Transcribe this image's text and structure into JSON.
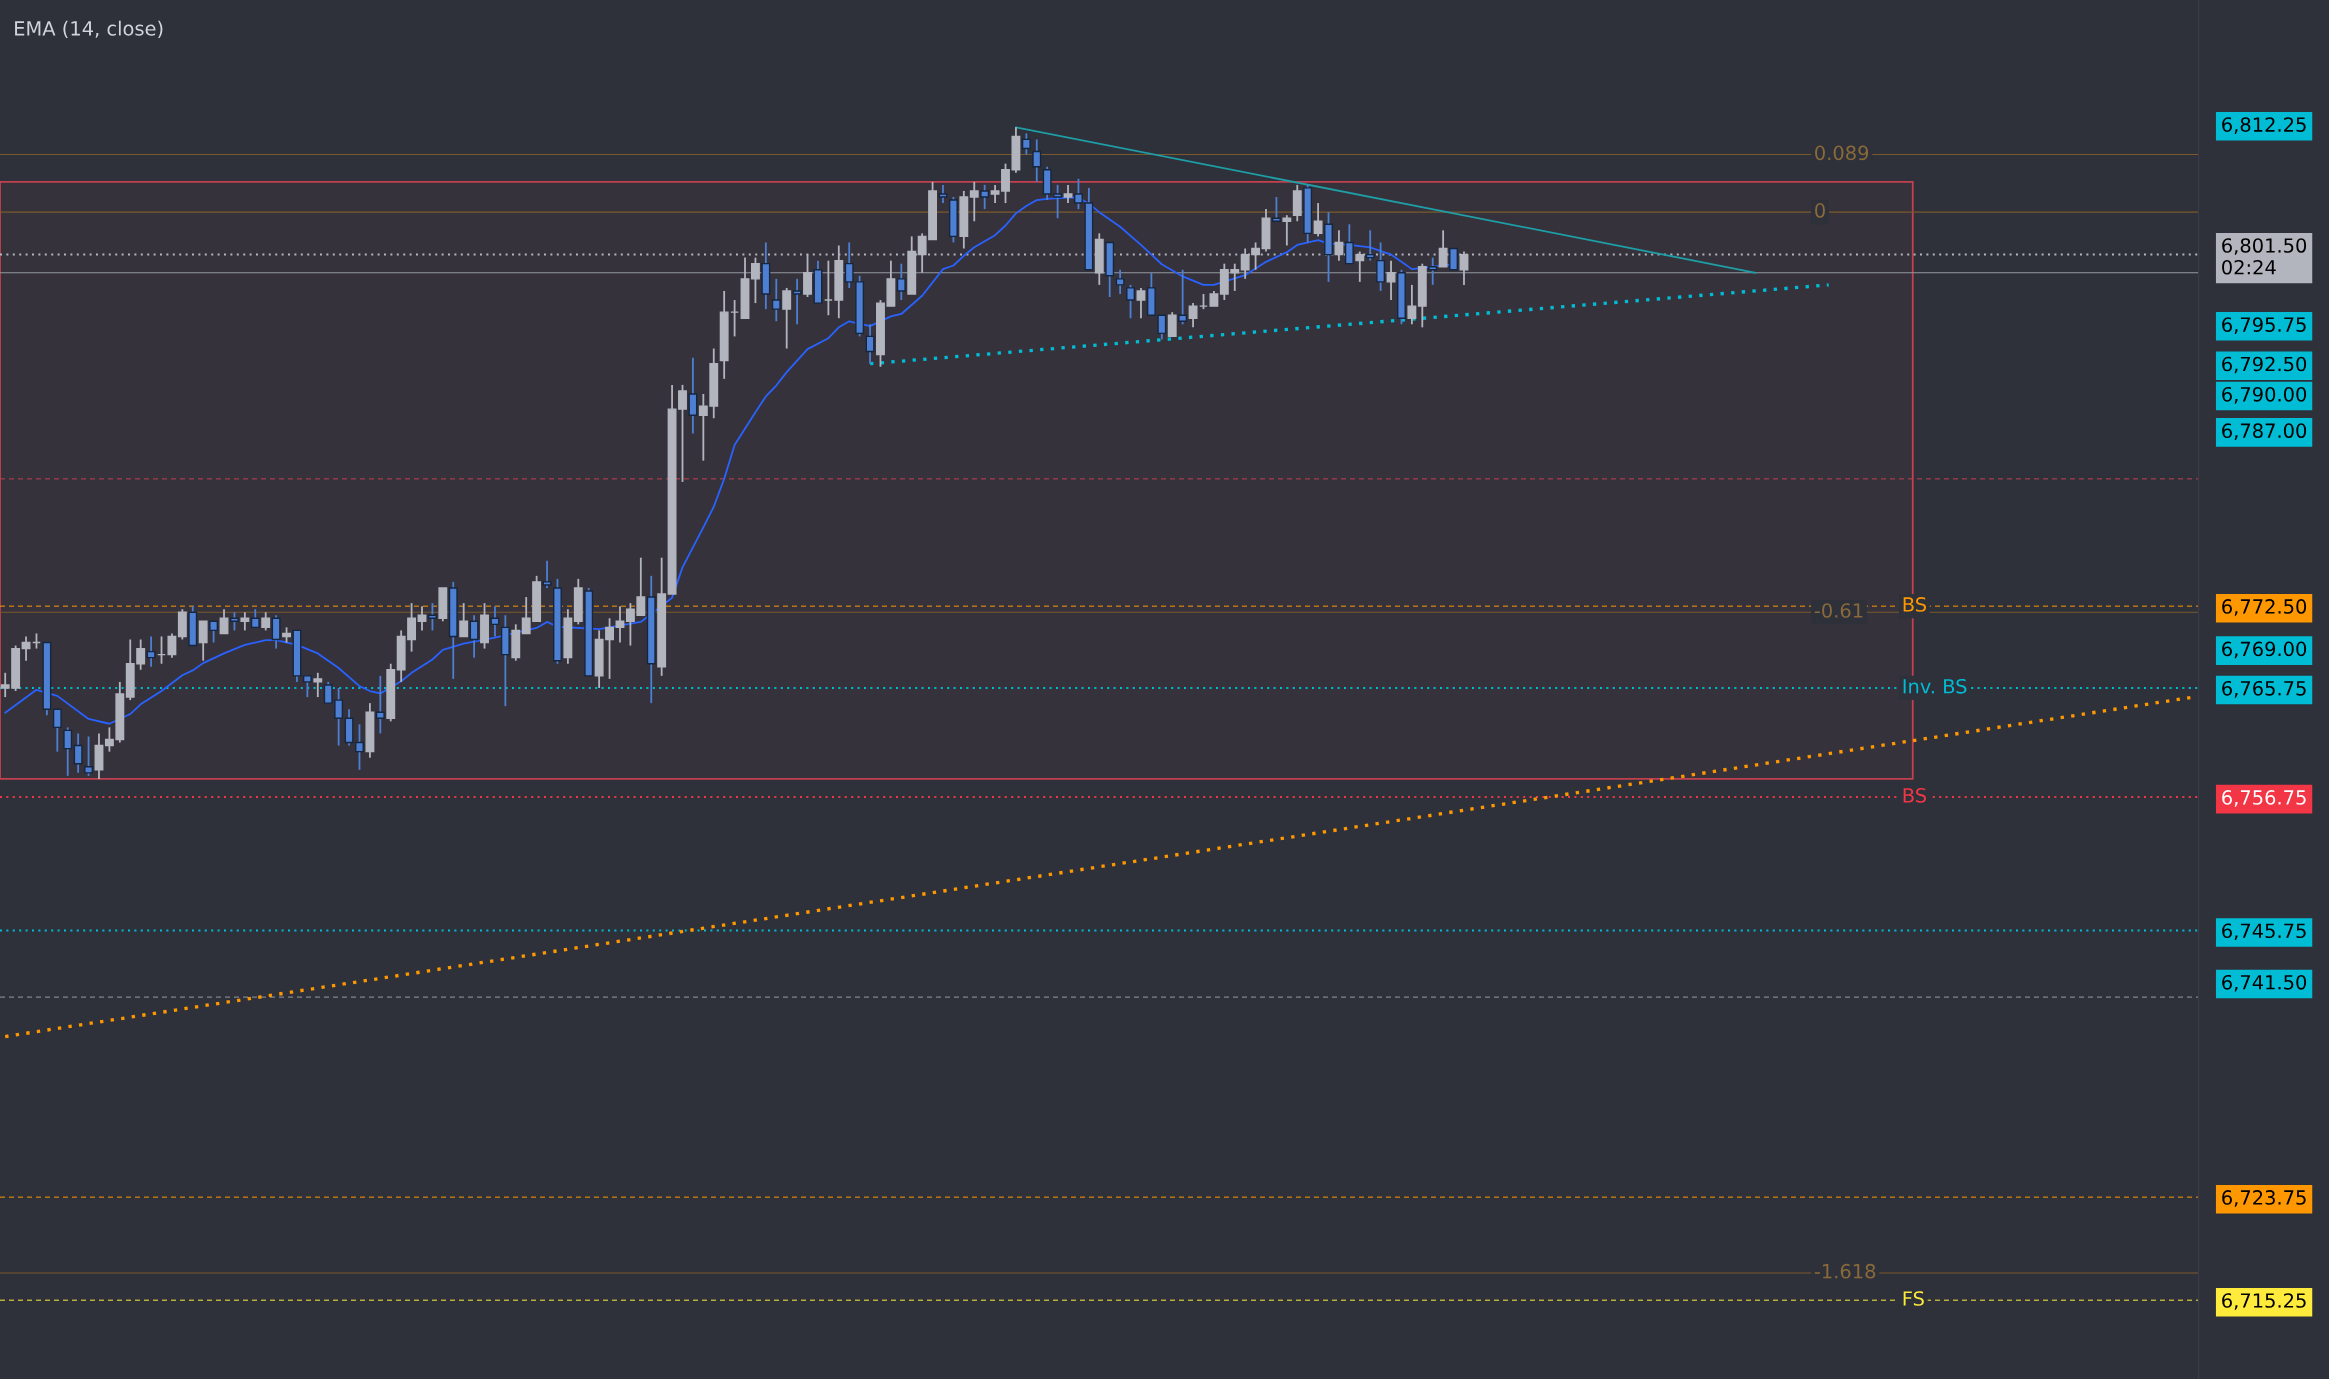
{
  "chart_data": {
    "type": "candlestick",
    "annotations": [
      "EMA (14, close)",
      {
        "text": "0.089",
        "y": 6809.75
      },
      {
        "text": "0",
        "y": 6805
      },
      {
        "text": "-0.61",
        "y": 6772
      },
      {
        "text": "-1.618",
        "y": 6717.5
      }
    ],
    "categories": [
      null,
      null,
      null,
      null,
      null,
      null,
      null,
      null,
      null,
      null,
      null,
      null,
      null,
      null,
      null,
      null,
      null,
      null,
      null,
      null,
      null,
      null,
      null,
      null,
      null,
      null,
      null,
      null,
      null,
      null,
      null,
      null,
      null,
      null,
      null,
      null,
      null,
      null,
      null,
      null,
      null,
      null,
      null,
      null,
      null,
      null,
      null,
      null,
      null,
      null,
      null,
      null,
      null,
      null,
      null,
      null,
      null,
      null,
      null,
      null,
      null,
      null,
      null,
      null,
      null,
      null,
      null,
      null,
      null,
      null,
      null,
      null,
      null,
      null,
      null,
      null,
      null,
      null,
      null,
      null,
      null,
      null,
      null,
      null,
      null,
      null,
      null,
      null,
      null,
      null,
      null,
      null,
      null,
      null,
      null,
      null,
      null,
      null,
      null,
      null,
      null,
      null,
      null,
      null,
      null,
      null,
      null,
      null,
      null,
      null,
      null,
      null,
      null,
      null,
      null,
      null,
      null,
      null,
      null,
      null,
      null,
      null,
      null,
      null,
      null,
      null,
      null,
      null,
      null,
      null,
      null,
      null,
      null,
      null,
      null,
      null,
      null,
      null,
      null,
      null,
      null,
      null,
      null,
      null,
      null,
      null,
      null,
      null,
      null,
      null,
      null,
      null,
      null,
      null,
      null,
      null,
      null,
      null,
      null,
      null,
      null,
      null,
      null,
      null,
      null,
      null,
      null,
      null,
      null,
      null,
      null,
      null,
      null,
      null,
      null,
      null,
      null,
      null,
      null,
      null,
      null,
      null,
      null,
      null,
      null,
      null,
      null,
      null,
      null,
      null,
      null,
      null,
      null,
      null,
      null,
      null,
      null,
      null,
      null,
      null,
      null,
      null,
      null,
      null,
      null,
      null,
      null,
      null,
      null,
      null,
      null
    ],
    "ohlc": [
      [
        6765.75,
        6767,
        6765,
        6766
      ],
      [
        6765.75,
        6769.25,
        6765.5,
        6769
      ],
      [
        6769,
        6770,
        6768,
        6769.5
      ],
      [
        6769.5,
        6770.25,
        6769,
        6769.5
      ],
      [
        6769.5,
        6769.5,
        6763.5,
        6764
      ],
      [
        6764,
        6764,
        6760.5,
        6762.5
      ],
      [
        6762.25,
        6762.5,
        6758.5,
        6760.75
      ],
      [
        6761,
        6762,
        6758.75,
        6759.5
      ],
      [
        6759.25,
        6761.75,
        6758.5,
        6758.75
      ],
      [
        6759,
        6762,
        6758.25,
        6761
      ],
      [
        6761,
        6762.5,
        6760.5,
        6761.5
      ],
      [
        6761.5,
        6766.25,
        6761.25,
        6765.25
      ],
      [
        6765,
        6769.75,
        6764.75,
        6767.75
      ],
      [
        6767.75,
        6769.75,
        6767.25,
        6769
      ],
      [
        6768.75,
        6770,
        6767.5,
        6768.25
      ],
      [
        6768.5,
        6770,
        6767.75,
        6768.5
      ],
      [
        6768.5,
        6770.25,
        6768.25,
        6770
      ],
      [
        6770,
        6772.25,
        6769.75,
        6772
      ],
      [
        6772,
        6772.5,
        6769.25,
        6769.25
      ],
      [
        6769.5,
        6771.25,
        6768,
        6771.25
      ],
      [
        6771.25,
        6771.25,
        6769.5,
        6770.5
      ],
      [
        6770.25,
        6772.25,
        6770.25,
        6771.5
      ],
      [
        6771.5,
        6772,
        6770.5,
        6771.25
      ],
      [
        6771.25,
        6772,
        6770.5,
        6771.5
      ],
      [
        6771.5,
        6772.25,
        6770.75,
        6770.75
      ],
      [
        6770.75,
        6772,
        6770.5,
        6771.5
      ],
      [
        6771.5,
        6771.75,
        6769,
        6769.75
      ],
      [
        6770,
        6770.75,
        6769.5,
        6770.25
      ],
      [
        6770.5,
        6770.5,
        6766.25,
        6766.75
      ],
      [
        6766.75,
        6766.75,
        6765,
        6766.25
      ],
      [
        6766.25,
        6767,
        6765,
        6766.5
      ],
      [
        6766,
        6766.25,
        6764.5,
        6764.5
      ],
      [
        6764.75,
        6765.75,
        6761,
        6763.25
      ],
      [
        6763.25,
        6764,
        6761,
        6761.25
      ],
      [
        6761.25,
        6762.75,
        6759,
        6760.5
      ],
      [
        6760.5,
        6764.5,
        6760,
        6763.75
      ],
      [
        6763.75,
        6766.75,
        6762,
        6763.25
      ],
      [
        6763.25,
        6767.75,
        6763,
        6767.25
      ],
      [
        6767.25,
        6770.5,
        6766.25,
        6770
      ],
      [
        6769.75,
        6772.75,
        6768.75,
        6771.5
      ],
      [
        6771.25,
        6772.5,
        6770.5,
        6771.75
      ],
      [
        6771.75,
        6772.75,
        6770.5,
        6771.5
      ],
      [
        6771.5,
        6774,
        6771.25,
        6774
      ],
      [
        6774,
        6774.5,
        6766.5,
        6770
      ],
      [
        6770,
        6772.75,
        6770,
        6771.25
      ],
      [
        6771.25,
        6771.75,
        6768.25,
        6769.75
      ],
      [
        6769.5,
        6772.75,
        6769,
        6771.75
      ],
      [
        6771.5,
        6772.5,
        6770,
        6771
      ],
      [
        6770.75,
        6771.75,
        6764.25,
        6768.5
      ],
      [
        6768.25,
        6771,
        6768,
        6770.5
      ],
      [
        6770.25,
        6773.25,
        6770.25,
        6771.5
      ],
      [
        6771.25,
        6775,
        6771.25,
        6774.5
      ],
      [
        6774.5,
        6776.25,
        6774,
        6774.25
      ],
      [
        6774,
        6774.75,
        6767.75,
        6768
      ],
      [
        6768.25,
        6772.25,
        6767.75,
        6771.5
      ],
      [
        6771.25,
        6774.75,
        6771,
        6774
      ],
      [
        6773.75,
        6774,
        6766.75,
        6766.75
      ],
      [
        6766.75,
        6770.5,
        6765.75,
        6769.75
      ],
      [
        6769.75,
        6771.5,
        6766.5,
        6770.75
      ],
      [
        6770.75,
        6772.5,
        6769.5,
        6771.25
      ],
      [
        6771.25,
        6772.75,
        6769.25,
        6772.25
      ],
      [
        6771.75,
        6776.5,
        6771.75,
        6773.25
      ],
      [
        6773.25,
        6775,
        6764.5,
        6767.75
      ],
      [
        6767.5,
        6776.5,
        6766.75,
        6773.5
      ],
      [
        6773.5,
        6790.75,
        6773.5,
        6788.75
      ],
      [
        6788.75,
        6790.75,
        6782.75,
        6790.25
      ],
      [
        6790,
        6793,
        6786.75,
        6788.25
      ],
      [
        6788.25,
        6790,
        6784.5,
        6789
      ],
      [
        6789,
        6793.75,
        6788,
        6792.5
      ],
      [
        6792.75,
        6798.5,
        6791.25,
        6796.75
      ],
      [
        6796.75,
        6797.75,
        6794.75,
        6796.75
      ],
      [
        6796.25,
        6801.25,
        6796.25,
        6799.5
      ],
      [
        6799.5,
        6801.25,
        6797.5,
        6800.75
      ],
      [
        6800.75,
        6802.5,
        6797,
        6798.25
      ],
      [
        6797.75,
        6799.5,
        6796,
        6797
      ],
      [
        6797,
        6798.75,
        6793.75,
        6798.5
      ],
      [
        6798.5,
        6799.5,
        6795.75,
        6798.25
      ],
      [
        6798.25,
        6801.5,
        6798,
        6800
      ],
      [
        6800.25,
        6801,
        6797.5,
        6797.5
      ],
      [
        6797.75,
        6801,
        6796.5,
        6797.75
      ],
      [
        6797.75,
        6802.25,
        6796.25,
        6801
      ],
      [
        6800.75,
        6802.5,
        6798.75,
        6799.25
      ],
      [
        6799.25,
        6799.75,
        6794.75,
        6795
      ],
      [
        6794.75,
        6795.75,
        6792.5,
        6793.5
      ],
      [
        6793.25,
        6797.75,
        6792.25,
        6797.5
      ],
      [
        6797.25,
        6801,
        6797.25,
        6799.5
      ],
      [
        6799.5,
        6800.75,
        6797.75,
        6798.5
      ],
      [
        6798.25,
        6803,
        6798.25,
        6801.75
      ],
      [
        6801.5,
        6803.25,
        6800,
        6803
      ],
      [
        6802.75,
        6807.5,
        6802.75,
        6806.75
      ],
      [
        6806.5,
        6807.25,
        6805.75,
        6806.25
      ],
      [
        6806,
        6806.25,
        6802.5,
        6803
      ],
      [
        6803,
        6806.75,
        6802,
        6806.25
      ],
      [
        6806.25,
        6807.5,
        6804.25,
        6806.75
      ],
      [
        6806.75,
        6807.25,
        6805.25,
        6806.25
      ],
      [
        6806.5,
        6807.25,
        6805.75,
        6806.75
      ],
      [
        6806.75,
        6809,
        6805.75,
        6808.5
      ],
      [
        6808.5,
        6812,
        6808.25,
        6811.25
      ],
      [
        6811,
        6811.5,
        6809.75,
        6810.25
      ],
      [
        6810,
        6811,
        6807.5,
        6808.75
      ],
      [
        6808.5,
        6808.75,
        6806,
        6806.5
      ],
      [
        6806.5,
        6807.25,
        6804.5,
        6806.25
      ],
      [
        6806.25,
        6807.25,
        6805.75,
        6806.5
      ],
      [
        6806.5,
        6807.75,
        6805.25,
        6805.75
      ],
      [
        6805.75,
        6807,
        6800.25,
        6800.25
      ],
      [
        6800,
        6803.25,
        6799,
        6802.75
      ],
      [
        6802.5,
        6802.5,
        6798,
        6799.75
      ],
      [
        6799.5,
        6800.25,
        6798.25,
        6799
      ],
      [
        6798.75,
        6799,
        6796.25,
        6797.75
      ],
      [
        6797.75,
        6798.75,
        6796.25,
        6798.5
      ],
      [
        6798.75,
        6800,
        6796.5,
        6796.5
      ],
      [
        6796.5,
        6796.5,
        6794.5,
        6795
      ],
      [
        6794.75,
        6796.75,
        6794.75,
        6796.5
      ],
      [
        6796.5,
        6800.25,
        6795.75,
        6796
      ],
      [
        6796.25,
        6797.5,
        6795.5,
        6797.25
      ],
      [
        6797.25,
        6798.25,
        6797,
        6797.25
      ],
      [
        6797.25,
        6798.5,
        6797.25,
        6798.25
      ],
      [
        6798.25,
        6800.75,
        6797.75,
        6800.25
      ],
      [
        6800,
        6800.75,
        6798.5,
        6800.25
      ],
      [
        6800.25,
        6802,
        6799.5,
        6801.5
      ],
      [
        6801.5,
        6802.5,
        6800.25,
        6802
      ],
      [
        6802,
        6805.25,
        6801.75,
        6804.5
      ],
      [
        6804.5,
        6806.25,
        6804.25,
        6804.25
      ],
      [
        6804.25,
        6804.75,
        6802.25,
        6804.5
      ],
      [
        6804.75,
        6807.25,
        6804.25,
        6806.75
      ],
      [
        6807,
        6807.25,
        6802.5,
        6803.25
      ],
      [
        6803.25,
        6805.75,
        6803,
        6804.25
      ],
      [
        6804,
        6805,
        6799.25,
        6801.5
      ],
      [
        6801.5,
        6803.5,
        6801,
        6802.5
      ],
      [
        6802.5,
        6804,
        6800.75,
        6800.75
      ],
      [
        6801,
        6801.75,
        6799.25,
        6801.5
      ],
      [
        6801.5,
        6803.5,
        6801,
        6801.25
      ],
      [
        6801,
        6802.5,
        6798.5,
        6799.25
      ],
      [
        6799.25,
        6801,
        6797.75,
        6800
      ],
      [
        6800,
        6800.25,
        6795.75,
        6796.25
      ],
      [
        6796.25,
        6799,
        6795.75,
        6797.25
      ],
      [
        6797.25,
        6800.75,
        6795.5,
        6800.5
      ],
      [
        6800.5,
        6801.25,
        6799,
        6800.25
      ],
      [
        6800.5,
        6803.5,
        6800.5,
        6802
      ],
      [
        6802,
        6802,
        6800.25,
        6800.25
      ],
      [
        6800.25,
        6801.75,
        6799,
        6801.5
      ],
      null,
      null,
      null,
      null,
      null,
      null,
      null,
      null,
      null,
      null,
      null,
      null,
      null,
      null,
      null,
      null,
      null,
      null,
      null,
      null,
      null,
      null,
      null,
      null,
      null,
      null,
      null,
      null,
      null,
      null,
      null,
      null,
      null,
      null,
      null,
      null,
      null,
      null,
      null,
      null,
      null,
      null,
      null,
      null,
      null,
      null,
      null,
      null,
      null,
      null,
      null,
      null,
      null,
      null,
      null,
      null,
      null,
      null,
      null,
      null,
      null,
      null,
      null,
      null,
      null,
      null,
      null,
      null,
      null,
      null
    ],
    "colors": [
      "#b2b5be",
      "#b2b5be",
      "#b2b5be",
      "#b2b5be",
      "#4d7fd2",
      "#4d7fd2",
      "#4d7fd2",
      "#4d7fd2",
      "#4d7fd2",
      "#b2b5be",
      "#b2b5be",
      "#b2b5be",
      "#b2b5be",
      "#b2b5be",
      "#4d7fd2",
      "#b2b5be",
      "#b2b5be",
      "#b2b5be",
      "#4d7fd2",
      "#b2b5be",
      "#4d7fd2",
      "#b2b5be",
      "#4d7fd2",
      "#b2b5be",
      "#4d7fd2",
      "#b2b5be",
      "#4d7fd2",
      "#b2b5be",
      "#4d7fd2",
      "#4d7fd2",
      "#b2b5be",
      "#4d7fd2",
      "#4d7fd2",
      "#4d7fd2",
      "#4d7fd2",
      "#b2b5be",
      "#4d7fd2",
      "#b2b5be",
      "#b2b5be",
      "#b2b5be",
      "#b2b5be",
      "#4d7fd2",
      "#b2b5be",
      "#4d7fd2",
      "#b2b5be",
      "#4d7fd2",
      "#b2b5be",
      "#4d7fd2",
      "#4d7fd2",
      "#b2b5be",
      "#b2b5be",
      "#b2b5be",
      "#4d7fd2",
      "#4d7fd2",
      "#b2b5be",
      "#b2b5be",
      "#4d7fd2",
      "#b2b5be",
      "#b2b5be",
      "#b2b5be",
      "#b2b5be",
      "#b2b5be",
      "#4d7fd2",
      "#b2b5be",
      "#b2b5be",
      "#b2b5be",
      "#4d7fd2",
      "#b2b5be",
      "#b2b5be",
      "#b2b5be",
      "#b2b5be",
      "#b2b5be",
      "#b2b5be",
      "#4d7fd2",
      "#4d7fd2",
      "#b2b5be",
      "#4d7fd2",
      "#b2b5be",
      "#4d7fd2",
      "#b2b5be",
      "#b2b5be",
      "#4d7fd2",
      "#4d7fd2",
      "#4d7fd2",
      "#b2b5be",
      "#b2b5be",
      "#4d7fd2",
      "#b2b5be",
      "#b2b5be",
      "#b2b5be",
      "#4d7fd2",
      "#4d7fd2",
      "#b2b5be",
      "#b2b5be",
      "#4d7fd2",
      "#b2b5be",
      "#b2b5be",
      "#b2b5be",
      "#4d7fd2",
      "#4d7fd2",
      "#4d7fd2",
      "#4d7fd2",
      "#b2b5be",
      "#4d7fd2",
      "#4d7fd2",
      "#b2b5be",
      "#4d7fd2",
      "#4d7fd2",
      "#4d7fd2",
      "#b2b5be",
      "#4d7fd2",
      "#4d7fd2",
      "#b2b5be",
      "#4d7fd2",
      "#b2b5be",
      "#b2b5be",
      "#b2b5be",
      "#b2b5be",
      "#b2b5be",
      "#b2b5be",
      "#b2b5be",
      "#b2b5be",
      "#4d7fd2",
      "#b2b5be",
      "#b2b5be",
      "#4d7fd2",
      "#b2b5be",
      "#4d7fd2",
      "#b2b5be",
      "#4d7fd2",
      "#b2b5be",
      "#4d7fd2",
      "#4d7fd2",
      "#b2b5be",
      "#4d7fd2",
      "#b2b5be",
      "#b2b5be",
      "#4d7fd2",
      "#b2b5be",
      "#4d7fd2",
      "#b2b5be",
      null,
      null,
      null,
      null,
      null,
      null,
      null,
      null,
      null,
      null,
      null,
      null,
      null,
      null,
      null,
      null,
      null,
      null,
      null,
      null,
      null,
      null,
      null,
      null,
      null,
      null,
      null,
      null,
      null,
      null,
      null,
      null,
      null,
      null,
      null,
      null,
      null,
      null,
      null,
      null,
      null,
      null,
      null,
      null,
      null,
      null,
      null,
      null,
      null,
      null,
      null,
      null,
      null,
      null,
      null,
      null,
      null,
      null,
      null,
      null,
      null,
      null,
      null,
      null,
      null,
      null,
      null,
      null,
      null,
      null
    ],
    "series": [
      {
        "type": "line",
        "color": "#2962ff",
        "line_style": "solid",
        "values": [
          6763.7,
          null,
          null,
          6765.6,
          null,
          6765.1,
          null,
          null,
          6763.2,
          null,
          6762.8,
          null,
          6763.6,
          6764.4,
          null,
          6765.5,
          null,
          6766.8,
          6767.2,
          6767.8,
          null,
          6768.6,
          null,
          6769.3,
          null,
          6769.7,
          6769.7,
          null,
          6769.3,
          null,
          6768.6,
          null,
          6767.4,
          null,
          6765.9,
          6765.5,
          6765.3,
          null,
          6766.3,
          6767.0,
          null,
          6768.1,
          6768.9,
          null,
          6769.4,
          null,
          null,
          6769.9,
          null,
          null,
          null,
          6770.7,
          6771.2,
          6770.8,
          null,
          null,
          null,
          6770.6,
          null,
          null,
          null,
          6771.2,
          null,
          null,
          6773.2,
          6775.7,
          null,
          6779.0,
          6780.7,
          6783.0,
          6785.8,
          null,
          6788.5,
          6789.8,
          6790.7,
          6791.8,
          null,
          6793.7,
          null,
          6794.6,
          6795.5,
          6796.0,
          null,
          6795.6,
          null,
          6796.4,
          6796.6,
          null,
          6798.1,
          null,
          6800.3,
          6800.6,
          6801.4,
          6802.1,
          null,
          6803.1,
          6803.9,
          6804.9,
          6805.5,
          6806.0,
          6806.1,
          null,
          6806.2,
          6806.2,
          6805.7,
          6805.0,
          null,
          6803.8,
          null,
          6802.3,
          null,
          6800.7,
          null,
          6799.7,
          null,
          6799.0,
          6799.0,
          null,
          null,
          6799.8,
          null,
          6800.9,
          null,
          6801.7,
          6802.3,
          null,
          6802.7,
          6802.4,
          null,
          6802.3,
          null,
          6802.1,
          null,
          6801.5,
          6800.9,
          6800.3,
          null,
          6800.5,
          null,
          6800.7,
          null,
          null,
          null,
          null,
          null,
          null,
          null,
          null,
          null,
          null,
          null,
          null,
          null,
          null,
          null,
          null,
          null,
          null,
          null,
          null,
          null,
          null,
          null,
          null,
          null,
          null,
          null,
          null,
          null,
          null,
          null,
          null,
          null,
          null,
          null,
          null,
          null,
          null,
          null,
          null,
          null,
          null,
          null,
          null,
          null,
          null,
          null,
          null,
          null,
          null,
          null,
          null,
          null,
          null,
          null,
          null,
          null,
          null,
          null,
          null,
          null,
          null,
          null,
          null,
          null,
          null,
          null,
          null,
          null,
          null,
          null
        ]
      },
      {
        "type": "line",
        "color": "#1e9ea6",
        "line_style": "solid",
        "values": [
          null,
          null,
          null,
          null,
          null,
          null,
          null,
          null,
          null,
          null,
          null,
          null,
          null,
          null,
          null,
          null,
          null,
          null,
          null,
          null,
          null,
          null,
          null,
          null,
          null,
          null,
          null,
          null,
          null,
          null,
          null,
          null,
          null,
          null,
          null,
          null,
          null,
          null,
          null,
          null,
          null,
          null,
          null,
          null,
          null,
          null,
          null,
          null,
          null,
          null,
          null,
          null,
          null,
          null,
          null,
          null,
          null,
          null,
          null,
          null,
          null,
          null,
          null,
          null,
          null,
          null,
          null,
          null,
          null,
          null,
          null,
          null,
          null,
          null,
          null,
          null,
          null,
          null,
          null,
          null,
          null,
          null,
          null,
          null,
          null,
          null,
          null,
          null,
          null,
          null,
          null,
          null,
          null,
          null,
          null,
          null,
          null,
          6812,
          null,
          null,
          null,
          null,
          null,
          null,
          null,
          null,
          null,
          null,
          null,
          null,
          null,
          null,
          null,
          null,
          null,
          null,
          null,
          null,
          null,
          null,
          null,
          null,
          null,
          null,
          null,
          null,
          null,
          null,
          null,
          null,
          null,
          null,
          null,
          null,
          null,
          null,
          null,
          null,
          null,
          null,
          null,
          null,
          null,
          null,
          null,
          null,
          null,
          null,
          null,
          null,
          null,
          null,
          null,
          null,
          null,
          null,
          null,
          null,
          null,
          null,
          null,
          null,
          null,
          null,
          null,
          null,
          null,
          null,
          6800,
          null,
          null,
          null,
          null,
          null,
          null,
          null,
          null,
          null,
          null,
          null,
          null,
          null,
          null,
          null,
          null,
          null,
          null,
          null,
          null,
          null,
          null,
          null,
          null,
          null,
          null,
          null,
          null,
          null,
          null,
          null,
          null,
          null,
          null,
          null,
          null,
          null,
          null,
          null,
          null,
          null,
          null
        ]
      },
      {
        "type": "line",
        "color": "#00bcd4",
        "line_style": "dotted",
        "values": [
          null,
          null,
          null,
          null,
          null,
          null,
          null,
          null,
          null,
          null,
          null,
          null,
          null,
          null,
          null,
          null,
          null,
          null,
          null,
          null,
          null,
          null,
          null,
          null,
          null,
          null,
          null,
          null,
          null,
          null,
          null,
          null,
          null,
          null,
          null,
          null,
          null,
          null,
          null,
          null,
          null,
          null,
          null,
          null,
          null,
          null,
          null,
          null,
          null,
          null,
          null,
          null,
          null,
          null,
          null,
          null,
          null,
          null,
          null,
          null,
          null,
          null,
          null,
          null,
          null,
          null,
          null,
          null,
          null,
          null,
          null,
          null,
          null,
          null,
          null,
          null,
          null,
          null,
          null,
          null,
          null,
          null,
          null,
          6792.5,
          null,
          null,
          null,
          null,
          null,
          null,
          null,
          null,
          null,
          null,
          null,
          null,
          null,
          null,
          null,
          null,
          null,
          null,
          null,
          null,
          null,
          null,
          null,
          null,
          null,
          null,
          null,
          null,
          null,
          null,
          null,
          null,
          null,
          null,
          null,
          null,
          null,
          null,
          null,
          null,
          null,
          null,
          null,
          null,
          null,
          null,
          null,
          null,
          null,
          null,
          null,
          null,
          null,
          null,
          null,
          null,
          null,
          null,
          null,
          null,
          null,
          null,
          null,
          null,
          null,
          null,
          null,
          null,
          null,
          null,
          null,
          null,
          null,
          null,
          null,
          null,
          null,
          null,
          null,
          null,
          null,
          null,
          null,
          null,
          null,
          null,
          null,
          null,
          null,
          null,
          null,
          6799,
          null,
          null,
          null,
          null,
          null,
          null,
          null,
          null,
          null,
          null,
          null,
          null,
          null,
          null,
          null,
          null,
          null,
          null,
          null,
          null,
          null,
          null,
          null,
          null,
          null,
          null,
          null,
          null,
          null,
          null,
          null,
          null,
          null,
          null,
          null
        ]
      },
      {
        "type": "line",
        "color": "#ff9800",
        "line_style": "dotted",
        "values": [
          6737,
          null,
          null,
          null,
          null,
          null,
          null,
          null,
          null,
          null,
          null,
          null,
          null,
          null,
          null,
          null,
          null,
          null,
          null,
          null,
          null,
          null,
          null,
          null,
          null,
          null,
          null,
          null,
          null,
          null,
          null,
          null,
          null,
          null,
          null,
          null,
          null,
          null,
          null,
          null,
          null,
          null,
          null,
          null,
          null,
          null,
          null,
          null,
          null,
          null,
          null,
          null,
          null,
          null,
          null,
          null,
          null,
          null,
          null,
          null,
          null,
          null,
          null,
          null,
          null,
          null,
          null,
          null,
          null,
          null,
          null,
          null,
          null,
          null,
          null,
          null,
          null,
          null,
          null,
          null,
          null,
          null,
          null,
          null,
          null,
          null,
          null,
          null,
          null,
          null,
          null,
          null,
          null,
          null,
          null,
          null,
          null,
          null,
          null,
          null,
          null,
          null,
          null,
          null,
          null,
          null,
          null,
          null,
          null,
          null,
          null,
          null,
          null,
          null,
          null,
          null,
          null,
          null,
          null,
          null,
          null,
          null,
          null,
          null,
          null,
          null,
          null,
          null,
          null,
          null,
          null,
          null,
          null,
          null,
          null,
          null,
          null,
          null,
          null,
          null,
          null,
          null,
          null,
          null,
          null,
          null,
          null,
          null,
          null,
          null,
          null,
          null,
          null,
          null,
          null,
          null,
          null,
          null,
          null,
          null,
          null,
          null,
          null,
          null,
          null,
          null,
          null,
          null,
          null,
          null,
          null,
          null,
          null,
          null,
          null,
          null,
          null,
          null,
          null,
          null,
          null,
          null,
          null,
          null,
          null,
          null,
          null,
          null,
          null,
          null,
          null,
          null,
          null,
          null,
          null,
          null,
          null,
          null,
          null,
          null,
          null,
          null,
          null,
          null,
          null,
          null,
          null,
          null,
          null,
          null,
          6765
        ]
      }
    ],
    "ref_lines": [
      {
        "axis": "y",
        "value": 6809.75,
        "color": "#7a5a2c",
        "line_style": "solid"
      },
      {
        "axis": "y",
        "value": 6805,
        "color": "#7a5a2c",
        "line_style": "solid"
      },
      {
        "axis": "y",
        "value": 6801.5,
        "color": "#b2b5be",
        "line_style": "dotted"
      },
      {
        "axis": "y",
        "value": 6800,
        "color": "#9598a1",
        "line_style": "solid"
      },
      {
        "axis": "y",
        "value": 6783,
        "color": "#c2404f",
        "line_style": "dashed"
      },
      {
        "axis": "y",
        "value": 6772.5,
        "label": "BS",
        "color": "#ff9800",
        "line_style": "dashed"
      },
      {
        "axis": "y",
        "value": 6772,
        "color": "#7a5a2c",
        "line_style": "solid"
      },
      {
        "axis": "y",
        "value": 6765.75,
        "label": "Inv. BS",
        "color": "#00bcd4",
        "line_style": "dotted"
      },
      {
        "axis": "y",
        "value": 6756.75,
        "label": "BS",
        "color": "#f23645",
        "line_style": "dotted"
      },
      {
        "axis": "y",
        "value": 6745.75,
        "color": "#00bcd4",
        "line_style": "dotted"
      },
      {
        "axis": "y",
        "value": 6740.25,
        "color": "#9598a1",
        "line_style": "dashed"
      },
      {
        "axis": "y",
        "value": 6723.75,
        "color": "#ff9800",
        "line_style": "dashed"
      },
      {
        "axis": "y",
        "value": 6717.5,
        "color": "#7a5a2c",
        "line_style": "solid"
      },
      {
        "axis": "y",
        "value": 6715.25,
        "label": "FS",
        "color": "#ffeb3b",
        "line_style": "dashed"
      }
    ],
    "bands": [
      {
        "axis": "y",
        "from": 6758.25,
        "to": 6807.5,
        "color": "#c2404f"
      }
    ],
    "ylim": [
      6708.75,
      6822.5
    ],
    "yticks": [
      {
        "value": 6812.25,
        "label": "6,812.25"
      },
      {
        "value": 6801.5,
        "label": "6,801.50\n02:24"
      },
      {
        "value": 6795.75,
        "label": "6,795.75"
      },
      {
        "value": 6792.5,
        "label": "6,792.50"
      },
      {
        "value": 6790,
        "label": "6,790.00"
      },
      {
        "value": 6787,
        "label": "6,787.00"
      },
      {
        "value": 6772.5,
        "label": "6,772.50"
      },
      {
        "value": 6769,
        "label": "6,769.00"
      },
      {
        "value": 6765.75,
        "label": "6,765.75"
      },
      {
        "value": 6756.75,
        "label": "6,756.75"
      },
      {
        "value": 6745.75,
        "label": "6,745.75"
      },
      {
        "value": 6741.5,
        "label": "6,741.50"
      },
      {
        "value": 6723.75,
        "label": "6,723.75"
      },
      {
        "value": 6715.25,
        "label": "6,715.25"
      }
    ],
    "tick_labels": "y"
  }
}
